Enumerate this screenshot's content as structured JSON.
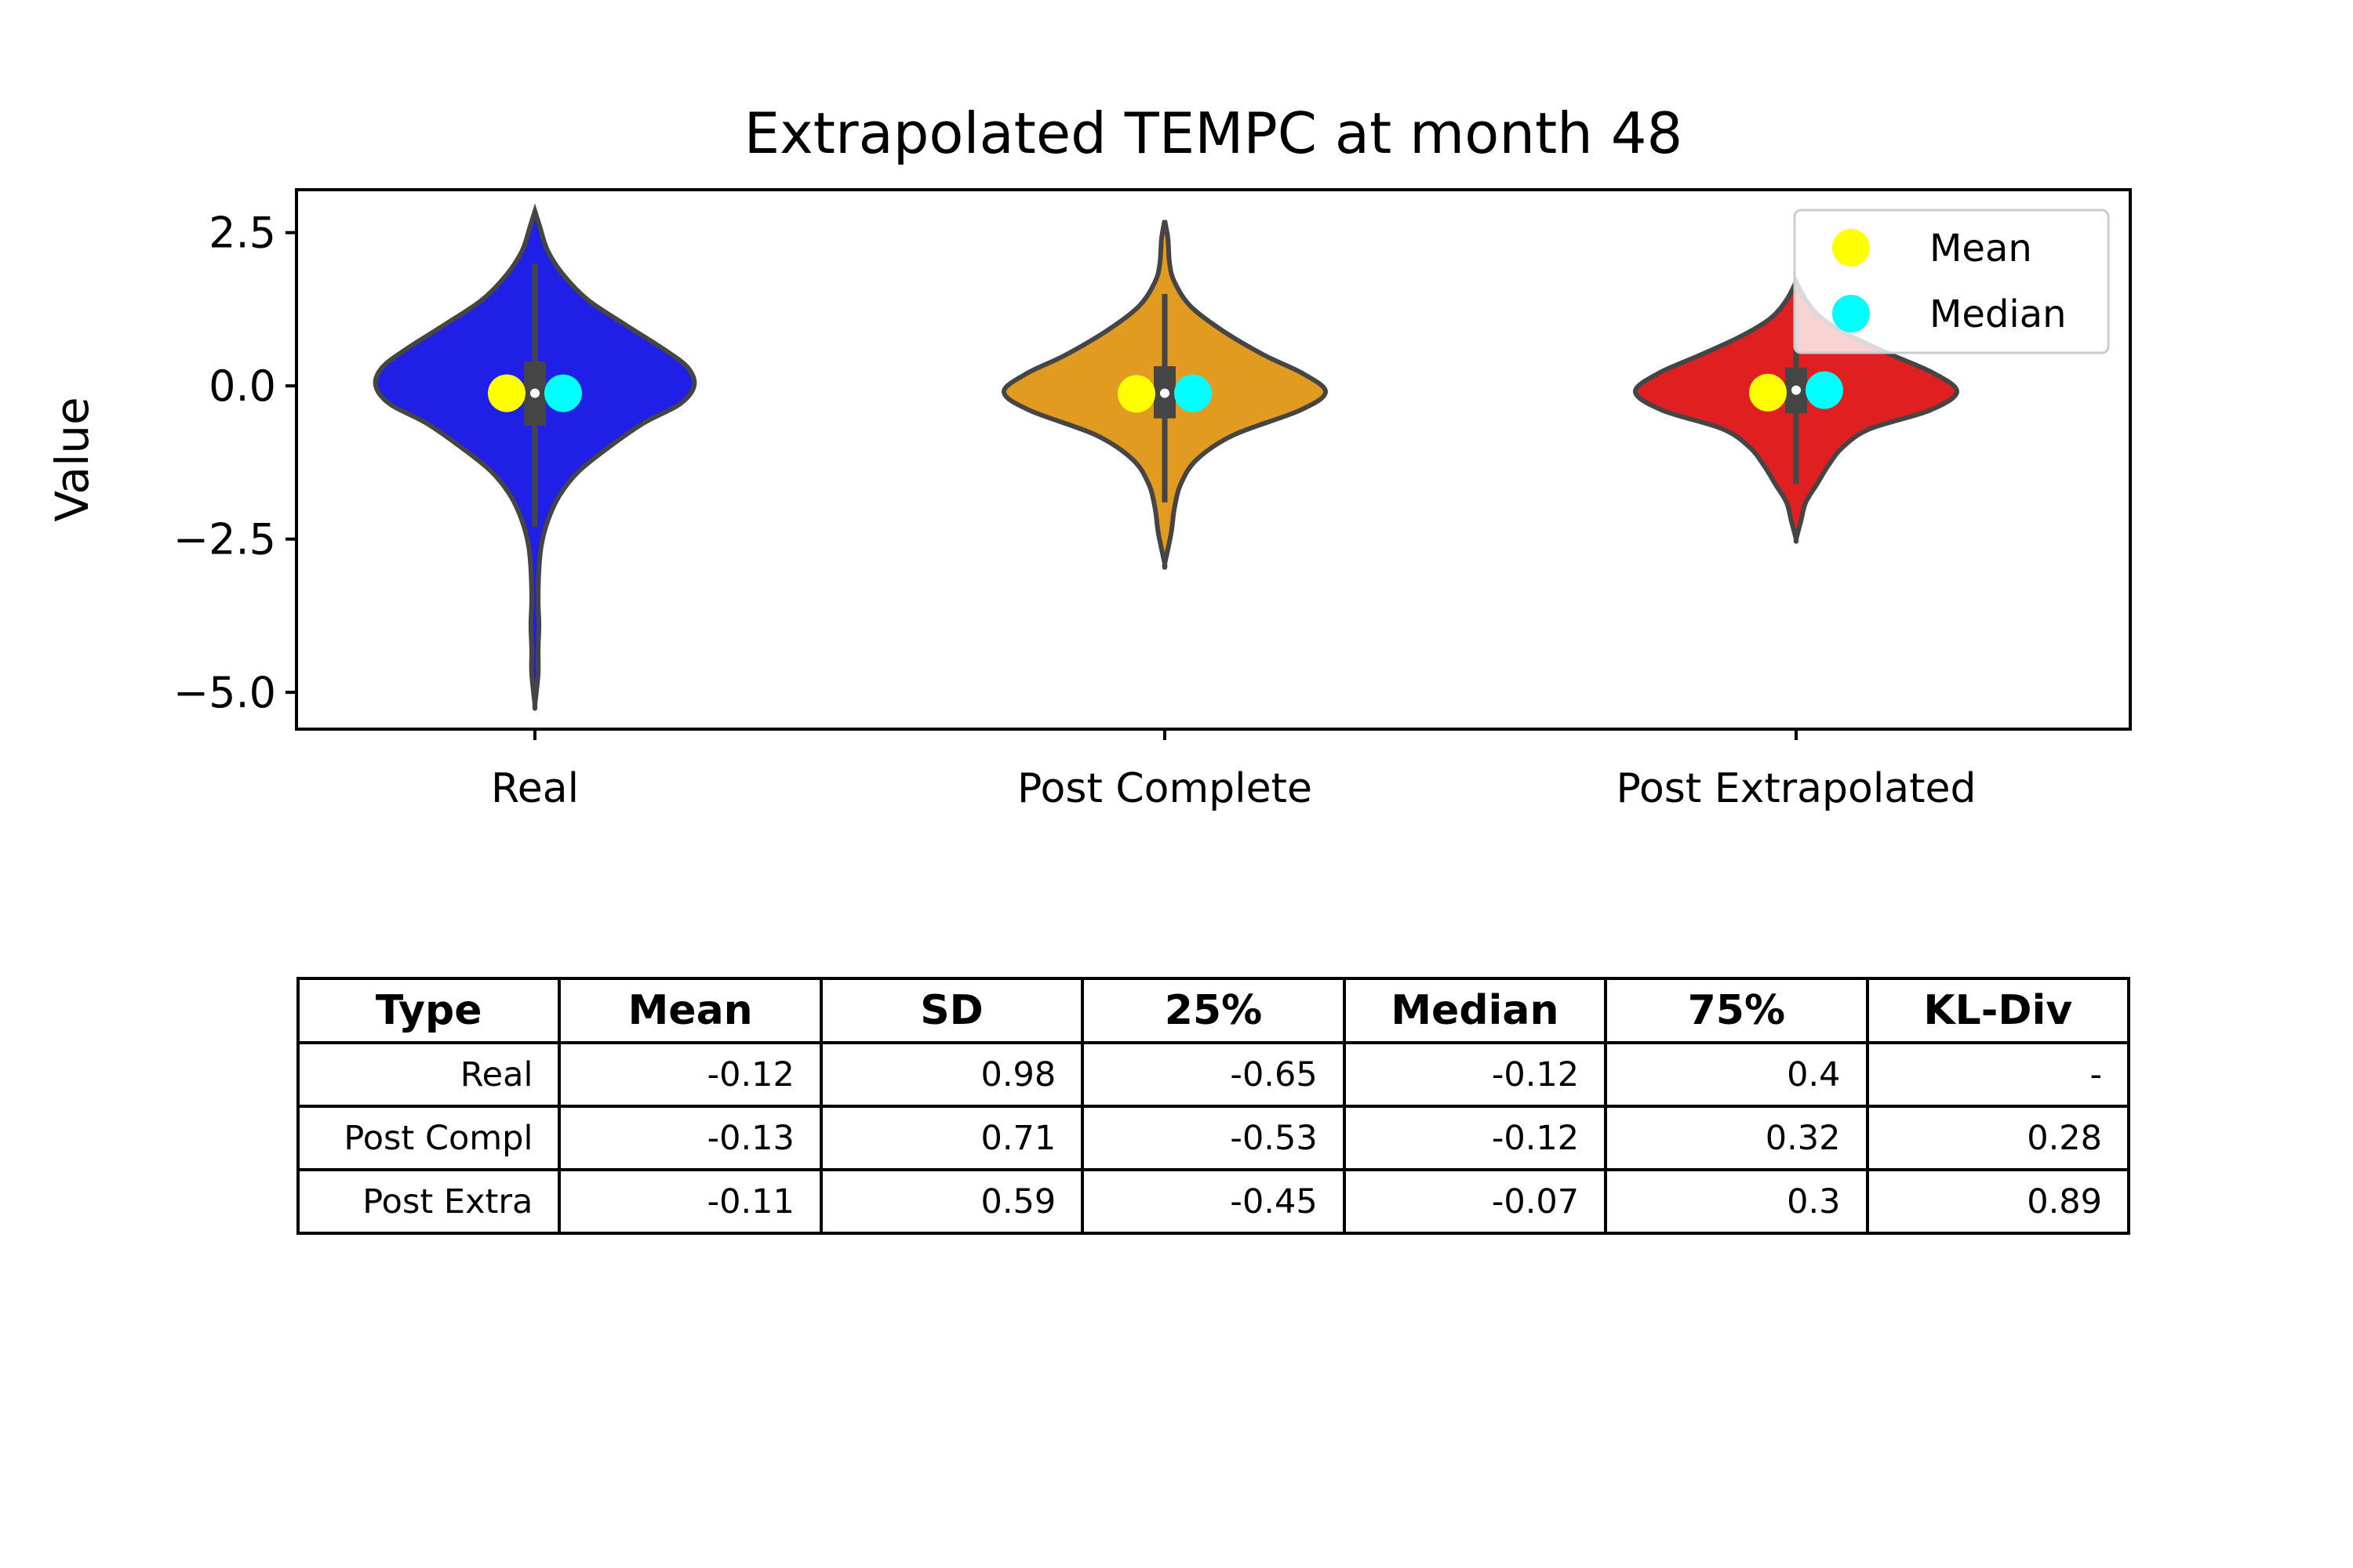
{
  "chart_data": {
    "type": "violin",
    "title": "Extrapolated TEMPC at month 48",
    "ylabel": "Value",
    "xlabel": "",
    "ylim": [
      -5.6,
      3.2
    ],
    "yticks": [
      2.5,
      0.0,
      -2.5,
      -5.0
    ],
    "ytick_labels": [
      "2.5",
      "0.0",
      "−2.5",
      "−5.0"
    ],
    "categories": [
      "Real",
      "Post Complete",
      "Post Extrapolated"
    ],
    "series": [
      {
        "category": "Real",
        "color": "#1f1fe6",
        "mean": -0.12,
        "median": -0.12,
        "q1": -0.65,
        "q3": 0.4,
        "whisker": [
          -2.3,
          2.0
        ],
        "violin": [
          [
            2.85,
            0.0
          ],
          [
            2.6,
            0.03
          ],
          [
            2.2,
            0.08
          ],
          [
            1.8,
            0.18
          ],
          [
            1.4,
            0.33
          ],
          [
            1.0,
            0.56
          ],
          [
            0.6,
            0.8
          ],
          [
            0.3,
            0.95
          ],
          [
            0.0,
            0.99
          ],
          [
            -0.3,
            0.9
          ],
          [
            -0.6,
            0.68
          ],
          [
            -1.0,
            0.46
          ],
          [
            -1.4,
            0.27
          ],
          [
            -1.8,
            0.15
          ],
          [
            -2.2,
            0.08
          ],
          [
            -2.6,
            0.04
          ],
          [
            -3.0,
            0.025
          ],
          [
            -3.5,
            0.02
          ],
          [
            -3.9,
            0.025
          ],
          [
            -4.3,
            0.02
          ],
          [
            -4.7,
            0.02
          ],
          [
            -5.2,
            0.0
          ]
        ]
      },
      {
        "category": "Post Complete",
        "color": "#e09b20",
        "mean": -0.13,
        "median": -0.12,
        "q1": -0.53,
        "q3": 0.32,
        "whisker": [
          -1.9,
          1.5
        ],
        "violin": [
          [
            2.7,
            0.0
          ],
          [
            2.4,
            0.02
          ],
          [
            2.0,
            0.03
          ],
          [
            1.7,
            0.06
          ],
          [
            1.3,
            0.16
          ],
          [
            0.9,
            0.36
          ],
          [
            0.5,
            0.62
          ],
          [
            0.2,
            0.86
          ],
          [
            -0.1,
            1.0
          ],
          [
            -0.4,
            0.84
          ],
          [
            -0.8,
            0.43
          ],
          [
            -1.2,
            0.2
          ],
          [
            -1.6,
            0.1
          ],
          [
            -2.0,
            0.06
          ],
          [
            -2.4,
            0.04
          ],
          [
            -2.9,
            0.0
          ]
        ]
      },
      {
        "category": "Post Extrapolated",
        "color": "#e02020",
        "mean": -0.11,
        "median": -0.07,
        "q1": -0.45,
        "q3": 0.3,
        "whisker": [
          -1.6,
          1.3
        ],
        "violin": [
          [
            1.7,
            0.0
          ],
          [
            1.4,
            0.06
          ],
          [
            1.1,
            0.16
          ],
          [
            0.8,
            0.35
          ],
          [
            0.5,
            0.6
          ],
          [
            0.2,
            0.86
          ],
          [
            -0.1,
            1.0
          ],
          [
            -0.4,
            0.83
          ],
          [
            -0.7,
            0.46
          ],
          [
            -1.0,
            0.29
          ],
          [
            -1.3,
            0.2
          ],
          [
            -1.6,
            0.13
          ],
          [
            -1.9,
            0.06
          ],
          [
            -2.2,
            0.03
          ],
          [
            -2.5,
            0.0
          ]
        ]
      }
    ],
    "legend": {
      "placement": "top-right",
      "entries": [
        {
          "label": "Mean",
          "color": "#ffff00"
        },
        {
          "label": "Median",
          "color": "#00ffff"
        }
      ]
    }
  },
  "table": {
    "headers": [
      "Type",
      "Mean",
      "SD",
      "25%",
      "Median",
      "75%",
      "KL-Div"
    ],
    "rows": [
      [
        "Real",
        "-0.12",
        "0.98",
        "-0.65",
        "-0.12",
        "0.4",
        "-"
      ],
      [
        "Post Compl",
        "-0.13",
        "0.71",
        "-0.53",
        "-0.12",
        "0.32",
        "0.28"
      ],
      [
        "Post Extra",
        "-0.11",
        "0.59",
        "-0.45",
        "-0.07",
        "0.3",
        "0.89"
      ]
    ]
  }
}
